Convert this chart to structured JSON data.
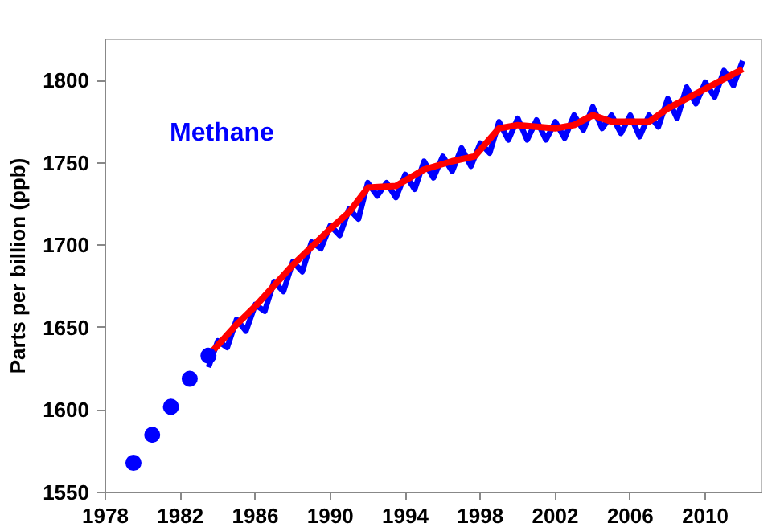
{
  "chart_data": {
    "type": "line",
    "ylabel": "Parts per billion (ppb)",
    "annotations": [
      "Methane"
    ],
    "xlim": [
      1978,
      2013
    ],
    "xticks": [
      1978,
      1982,
      1986,
      1990,
      1994,
      1998,
      2002,
      2006,
      2010
    ],
    "ylim": [
      1550,
      1825
    ],
    "yticks": [
      1550,
      1600,
      1650,
      1700,
      1750,
      1800
    ],
    "grid": false,
    "series": [
      {
        "color": "#0000ff",
        "x": [
          1983.5,
          1984.0,
          1984.5,
          1985.0,
          1985.5,
          1986.0,
          1986.5,
          1987.0,
          1987.5,
          1988.0,
          1988.5,
          1989.0,
          1989.5,
          1990.0,
          1990.5,
          1991.0,
          1991.5,
          1992.0,
          1992.5,
          1993.0,
          1993.5,
          1994.0,
          1994.5,
          1995.0,
          1995.5,
          1996.0,
          1996.5,
          1997.0,
          1997.5,
          1998.0,
          1998.5,
          1999.0,
          1999.5,
          2000.0,
          2000.5,
          2001.0,
          2001.5,
          2002.0,
          2002.5,
          2003.0,
          2003.5,
          2004.0,
          2004.5,
          2005.0,
          2005.5,
          2006.0,
          2006.5,
          2007.0,
          2007.5,
          2008.0,
          2008.5,
          2009.0,
          2009.5,
          2010.0,
          2010.5,
          2011.0,
          2011.5,
          2012.0
        ],
        "values": [
          1626,
          1642,
          1638,
          1655,
          1648,
          1664,
          1660,
          1678,
          1672,
          1690,
          1684,
          1702,
          1698,
          1712,
          1706,
          1722,
          1716,
          1738,
          1730,
          1738,
          1729,
          1743,
          1734,
          1751,
          1741,
          1754,
          1745,
          1759,
          1748,
          1762,
          1756,
          1775,
          1764,
          1777,
          1764,
          1776,
          1764,
          1775,
          1765,
          1779,
          1770,
          1784,
          1771,
          1779,
          1768,
          1779,
          1766,
          1779,
          1772,
          1789,
          1777,
          1796,
          1786,
          1799,
          1790,
          1806,
          1797,
          1812
        ]
      },
      {
        "color": "#ff0000",
        "x": [
          1983.5,
          1985,
          1986,
          1988,
          1990,
          1991,
          1992,
          1993.5,
          1995,
          1996.5,
          1997.7,
          1999,
          2000,
          2002,
          2003,
          2004,
          2005,
          2007,
          2008,
          2010,
          2012
        ],
        "values": [
          1633,
          1652,
          1663,
          1688,
          1710,
          1720,
          1735,
          1736,
          1746,
          1751,
          1754,
          1771,
          1773,
          1771,
          1773,
          1779,
          1775,
          1775,
          1783,
          1795,
          1807
        ]
      },
      {
        "type": "scatter",
        "marker": "circle",
        "color": "#0000ff",
        "x": [
          1979.5,
          1980.5,
          1981.5,
          1982.5,
          1983.5
        ],
        "values": [
          1568,
          1585,
          1602,
          1619,
          1633
        ]
      }
    ]
  }
}
